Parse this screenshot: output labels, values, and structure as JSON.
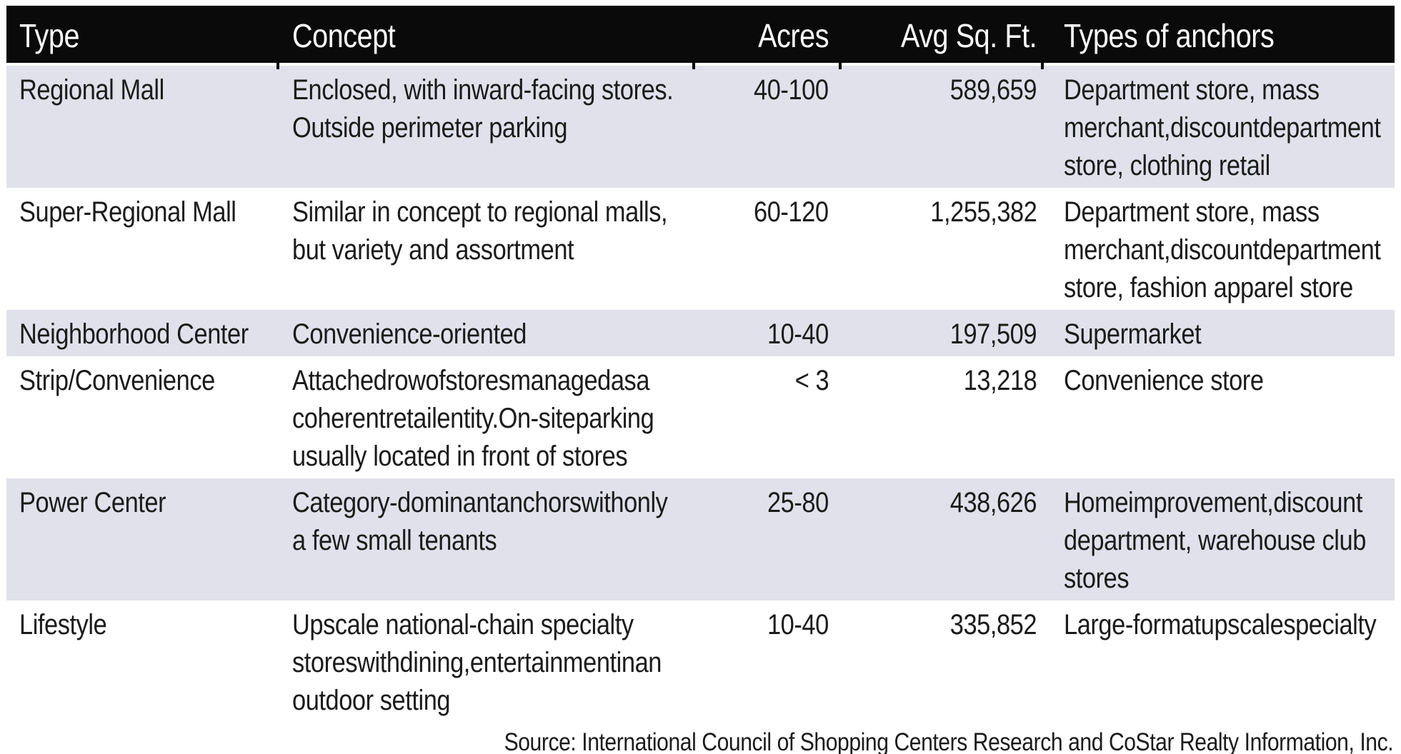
{
  "table": {
    "columns": [
      {
        "label": "Type"
      },
      {
        "label": "Concept"
      },
      {
        "label": "Acres"
      },
      {
        "label": "Avg Sq. Ft."
      },
      {
        "label": "Types of anchors"
      }
    ],
    "rows": [
      {
        "type": "Regional Mall",
        "concept": "Enclosed, with inward-facing stores.\nOutside perimeter parking",
        "acres": "40-100",
        "avg_sq_ft": "589,659",
        "anchors": "Department store, mass\nmerchant,discountdepartment\nstore, clothing retail"
      },
      {
        "type": "Super-Regional Mall",
        "concept": "Similar in concept to regional malls,\nbut variety and assortment",
        "acres": "60-120",
        "avg_sq_ft": "1,255,382",
        "anchors": "Department store, mass\nmerchant,discountdepartment\nstore, fashion apparel store"
      },
      {
        "type": "Neighborhood Center",
        "concept": "Convenience-oriented",
        "acres": "10-40",
        "avg_sq_ft": "197,509",
        "anchors": "Supermarket"
      },
      {
        "type": "Strip/Convenience",
        "concept": "Attachedrowofstoresmanagedasa\ncoherentretailentity.On-siteparking\nusually located in front of stores",
        "acres": "< 3",
        "avg_sq_ft": "13,218",
        "anchors": "Convenience store"
      },
      {
        "type": "Power Center",
        "concept": "Category-dominantanchorswithonly\na few small tenants",
        "acres": "25-80",
        "avg_sq_ft": "438,626",
        "anchors": "Homeimprovement,discount\ndepartment, warehouse club\nstores"
      },
      {
        "type": "Lifestyle",
        "concept": "Upscale national-chain specialty\nstoreswithdining,entertainmentinan\noutdoor setting",
        "acres": "10-40",
        "avg_sq_ft": "335,852",
        "anchors": "Large-formatupscalespecialty"
      }
    ]
  },
  "source_note": "Source: International Council of Shopping Centers Research and CoStar Realty Information, Inc.",
  "colors": {
    "header_bg": "#0a0a0a",
    "header_text": "#ffffff",
    "row_shaded_bg": "#e1e1ec",
    "row_plain_bg": "#ffffff",
    "body_text": "#1b1b1b"
  }
}
